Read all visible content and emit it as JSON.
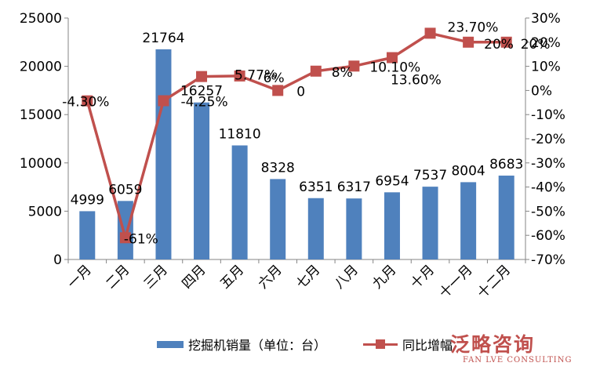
{
  "chart_data": {
    "type": "bar",
    "categories": [
      "一月",
      "二月",
      "三月",
      "四月",
      "五月",
      "六月",
      "七月",
      "八月",
      "九月",
      "十月",
      "十一月",
      "十二月"
    ],
    "series": [
      {
        "name": "挖掘机销量（单位：台）",
        "type": "bar",
        "axis": "left",
        "values": [
          4999,
          6059,
          21764,
          16257,
          11810,
          8328,
          6351,
          6317,
          6954,
          7537,
          8004,
          8683
        ],
        "labels": [
          "4999",
          "6059",
          "21764",
          "16257",
          "11810",
          "8328",
          "6351",
          "6317",
          "6954",
          "7537",
          "8004",
          "8683"
        ]
      },
      {
        "name": "同比增幅",
        "type": "line",
        "axis": "right",
        "values": [
          -4.3,
          -61,
          -4.25,
          5.77,
          6,
          0,
          8,
          10.1,
          13.6,
          23.7,
          20,
          20
        ],
        "labels": [
          "-4.30%",
          "-61%",
          "-4.25%",
          "5.77%",
          "6%",
          "0",
          "8%",
          "10.10%",
          "13.60%",
          "23.70%",
          "20%",
          "20%"
        ]
      }
    ],
    "y_left": {
      "min": 0,
      "max": 25000,
      "ticks": [
        "0",
        "5000",
        "10000",
        "15000",
        "20000",
        "25000"
      ]
    },
    "y_right": {
      "min": -70,
      "max": 30,
      "ticks": [
        "-70%",
        "-60%",
        "-50%",
        "-40%",
        "-30%",
        "-20%",
        "-10%",
        "0%",
        "10%",
        "20%",
        "30%"
      ]
    },
    "legend_position": "bottom",
    "grid": false
  },
  "colors": {
    "bar": "#4f81bd",
    "line": "#c0504d",
    "axis": "#868686",
    "text": "#000000"
  },
  "logo": {
    "cn": "泛略咨询",
    "en": "FAN LVE CONSULTING"
  }
}
